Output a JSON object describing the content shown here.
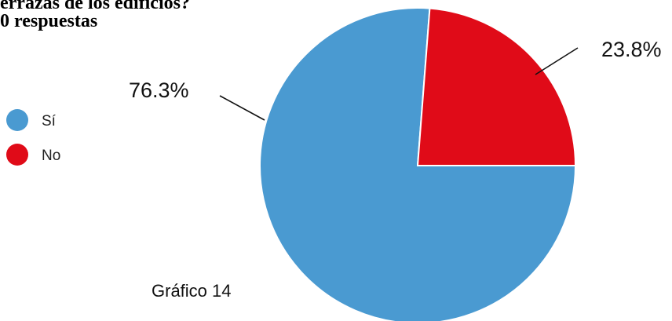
{
  "header": {
    "title_line1": "errazas de los edificios?",
    "title_line2": "0 respuestas"
  },
  "caption": "Gráfico 14",
  "colors": {
    "si": "#4a9ad1",
    "no": "#e00b18"
  },
  "chart_data": {
    "type": "pie",
    "categories": [
      "Sí",
      "No"
    ],
    "values": [
      76.3,
      23.8
    ],
    "labels": [
      "76.3%",
      "23.8%"
    ],
    "legend_position": "left"
  }
}
